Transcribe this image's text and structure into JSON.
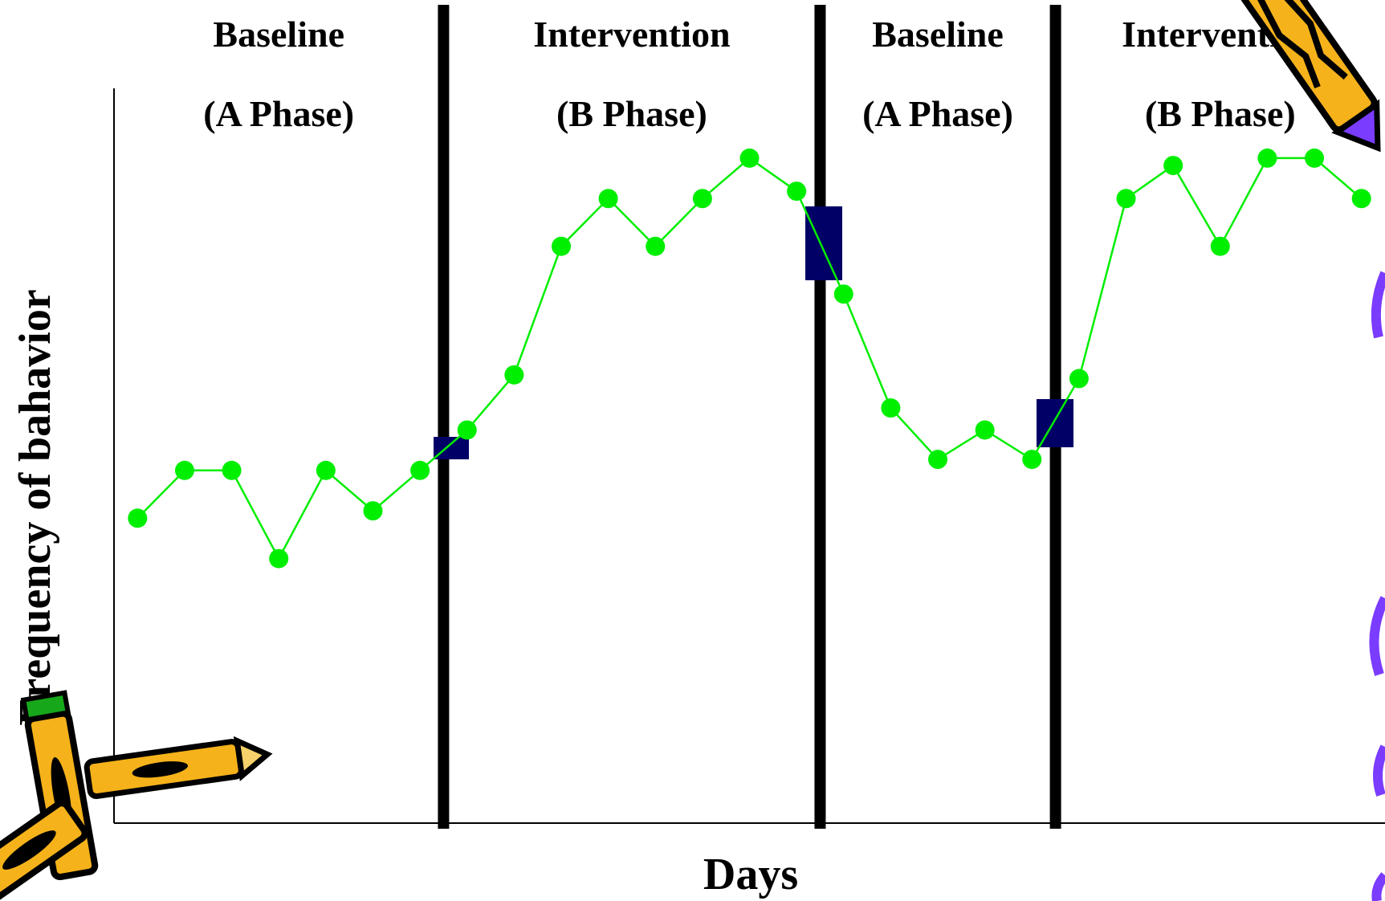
{
  "colors": {
    "series": "#00ee00",
    "phase_line": "#000000",
    "marker_block": "#000066",
    "pencil_body": "#f5b21a",
    "pencil_tip": "#7a3cff",
    "eraser_green": "#16a81a"
  },
  "chart_data": {
    "type": "line",
    "title": "",
    "xlabel": "Days",
    "ylabel": "Frequency of bahavior",
    "grid": false,
    "legend": "none",
    "xlim": [
      0,
      27
    ],
    "ylim": [
      0,
      100
    ],
    "x_ticks_labeled": false,
    "y_ticks_labeled": false,
    "phases": [
      {
        "title": "Baseline",
        "subtitle": "(A Phase)",
        "x_start": 0,
        "x_end": 7
      },
      {
        "title": "Intervention",
        "subtitle": "(B Phase)",
        "x_start": 7,
        "x_end": 15
      },
      {
        "title": "Baseline",
        "subtitle": "(A Phase)",
        "x_start": 15,
        "x_end": 20
      },
      {
        "title": "Intervention",
        "subtitle": "(B Phase)",
        "x_start": 20,
        "x_end": 27
      }
    ],
    "phase_change_lines": [
      7,
      15,
      20
    ],
    "series": [
      {
        "x": [
          0.5,
          1.5,
          2.5,
          3.5,
          4.5,
          5.5,
          6.5,
          7.5,
          8.5,
          9.5,
          10.5,
          11.5,
          12.5,
          13.5,
          14.5,
          15.5,
          16.5,
          17.5,
          18.5,
          19.5,
          20.5,
          21.5,
          22.5,
          23.5,
          24.5,
          25.5,
          26.5
        ],
        "values": [
          41.5,
          48,
          48,
          36,
          48,
          42.5,
          48,
          53.5,
          61,
          78.5,
          85,
          78.5,
          85,
          90.5,
          86,
          72,
          56.5,
          49.5,
          53.5,
          49.5,
          60.5,
          85,
          89.5,
          78.5,
          90.5,
          90.5,
          85
        ]
      }
    ]
  }
}
